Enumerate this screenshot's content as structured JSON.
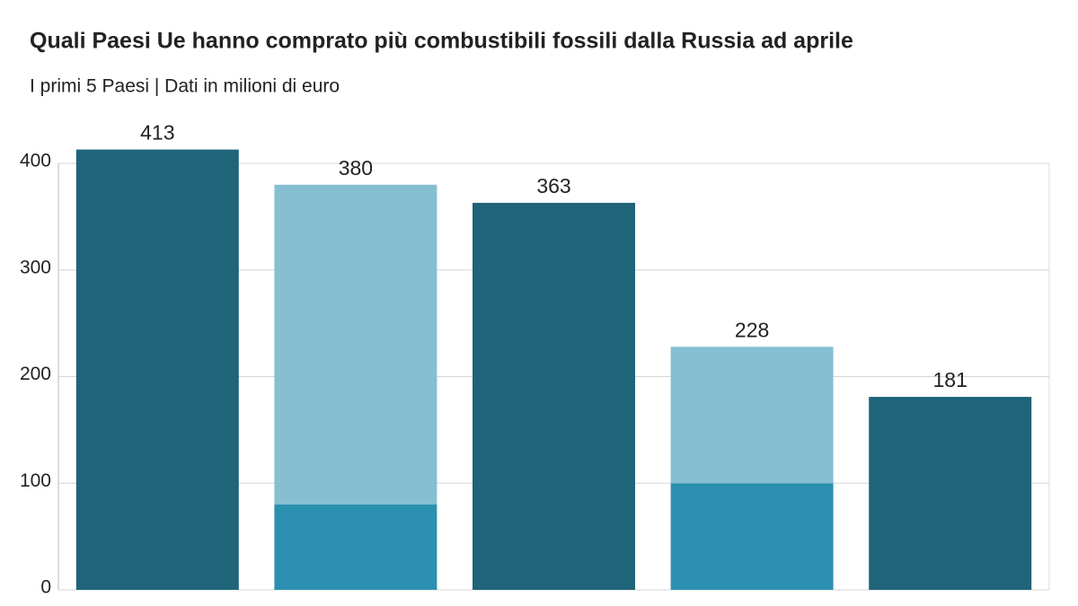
{
  "chart_data": {
    "type": "bar",
    "title": "Quali Paesi Ue hanno comprato più combustibili fossili dalla Russia ad aprile",
    "subtitle": "I primi 5 Paesi | Dati in milioni di euro",
    "categories": [
      null,
      null,
      null,
      null,
      null
    ],
    "series": [
      {
        "color": "#1f6479",
        "values": [
          413,
          null,
          363,
          null,
          181
        ]
      },
      {
        "color": "#2b90b0",
        "values": [
          null,
          80,
          null,
          100,
          null
        ]
      },
      {
        "color": "#86bfd1",
        "values": [
          null,
          300,
          null,
          128,
          null
        ]
      }
    ],
    "totals": [
      413,
      380,
      363,
      228,
      181
    ],
    "ylim": [
      0,
      400
    ],
    "yticks": [
      0,
      100,
      200,
      300,
      400
    ],
    "grid": true
  }
}
